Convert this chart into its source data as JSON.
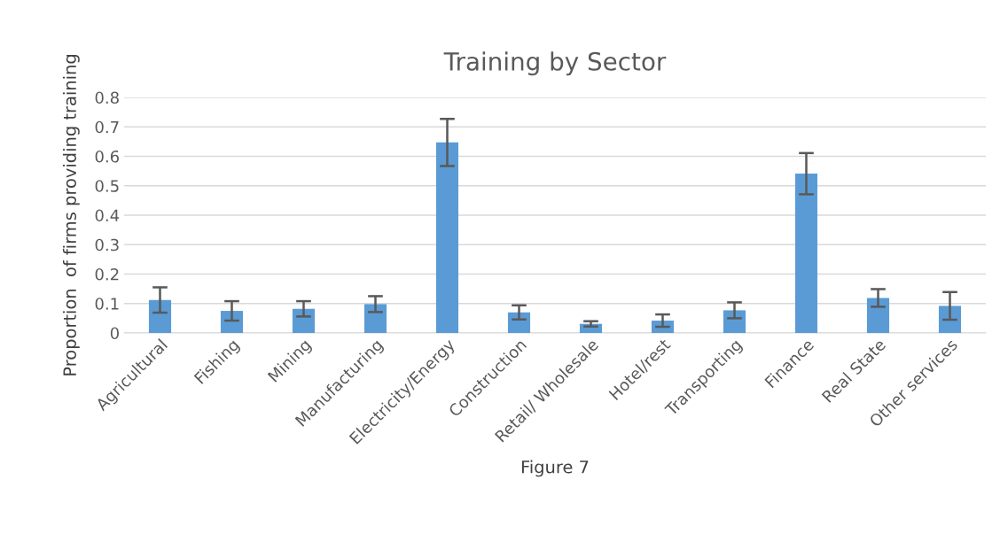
{
  "chart_data": {
    "type": "bar",
    "title": "Training by Sector",
    "xlabel": "Figure 7",
    "ylabel": "Proportion  of firms providing training",
    "categories": [
      "Agricultural",
      "Fishing",
      "Mining",
      "Manufacturing",
      "Electricity/Energy",
      "Construction",
      "Retail/ Wholesale",
      "Hotel/rest",
      "Transporting",
      "Finance",
      "Real State",
      "Other services"
    ],
    "values": [
      0.112,
      0.075,
      0.082,
      0.098,
      0.647,
      0.07,
      0.031,
      0.042,
      0.077,
      0.541,
      0.119,
      0.092
    ],
    "errors": [
      0.043,
      0.033,
      0.026,
      0.027,
      0.08,
      0.024,
      0.009,
      0.021,
      0.027,
      0.07,
      0.03,
      0.047
    ],
    "color": "#5b9bd5",
    "ylim": [
      0,
      0.8
    ],
    "yticks": [
      0,
      0.1,
      0.2,
      0.3,
      0.4,
      0.5,
      0.6,
      0.7,
      0.8
    ],
    "grid": "y"
  }
}
